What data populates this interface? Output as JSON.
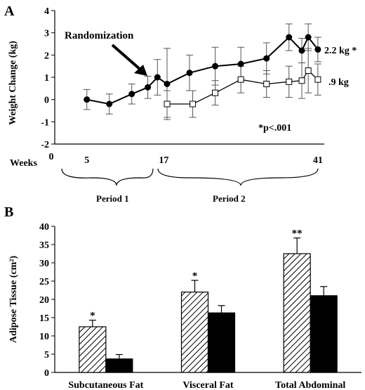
{
  "chart_data": [
    {
      "type": "line",
      "panel_label": "A",
      "ylabel": "Weight Change (kg)",
      "xlabel": "Weeks",
      "xlim": [
        0,
        42
      ],
      "ylim": [
        -2,
        4
      ],
      "yticks": [
        -2,
        -1,
        0,
        1,
        2,
        3,
        4
      ],
      "x_zero_label": "0",
      "x_tick_labels": [
        {
          "x": 5,
          "label": "5"
        },
        {
          "x": 17,
          "label": "17"
        },
        {
          "x": 41,
          "label": "41"
        }
      ],
      "series": [
        {
          "marker": "filled-circle",
          "points": [
            {
              "x": 5,
              "y": 0.0,
              "err": 0.45
            },
            {
              "x": 8.5,
              "y": -0.2,
              "err": 0.45
            },
            {
              "x": 12,
              "y": 0.25,
              "err": 0.45
            },
            {
              "x": 14.5,
              "y": 0.55,
              "err": 0.5
            },
            {
              "x": 16,
              "y": 1.0,
              "err": 0.8
            },
            {
              "x": 17.5,
              "y": 0.7,
              "err": 1.6
            },
            {
              "x": 21,
              "y": 1.2,
              "err": 0.8
            },
            {
              "x": 25,
              "y": 1.5,
              "err": 0.85
            },
            {
              "x": 29,
              "y": 1.6,
              "err": 0.75
            },
            {
              "x": 33,
              "y": 1.85,
              "err": 0.7
            },
            {
              "x": 36.5,
              "y": 2.8,
              "err": 0.6
            },
            {
              "x": 38.5,
              "y": 2.2,
              "err": 0.55
            },
            {
              "x": 39.5,
              "y": 2.8,
              "err": 0.6
            },
            {
              "x": 41,
              "y": 2.25,
              "err": 0.55
            }
          ]
        },
        {
          "marker": "open-square",
          "points": [
            {
              "x": 17.5,
              "y": -0.2,
              "err": 0.6
            },
            {
              "x": 21.5,
              "y": -0.2,
              "err": 0.6
            },
            {
              "x": 25,
              "y": 0.3,
              "err": 0.55
            },
            {
              "x": 29,
              "y": 0.9,
              "err": 0.6
            },
            {
              "x": 33,
              "y": 0.7,
              "err": 0.6
            },
            {
              "x": 36.5,
              "y": 0.8,
              "err": 0.7
            },
            {
              "x": 38.5,
              "y": 0.85,
              "err": 0.8
            },
            {
              "x": 39.5,
              "y": 1.3,
              "err": 1.0
            },
            {
              "x": 41,
              "y": 0.9,
              "err": 0.7
            }
          ]
        }
      ],
      "annotations": {
        "randomization": "Randomization",
        "pvalue": "*p<.001",
        "end_label_1": "2.2 kg *",
        "end_label_2": ".9 kg",
        "period1": "Period 1",
        "period2": "Period 2"
      }
    },
    {
      "type": "bar",
      "panel_label": "B",
      "ylabel": "Adipose Tissue (cm²)",
      "ylim": [
        0,
        40
      ],
      "yticks": [
        0,
        5,
        10,
        15,
        20,
        25,
        30,
        35,
        40
      ],
      "categories": [
        "Subcutaneous Fat",
        "Visceral Fat",
        "Total Abdominal"
      ],
      "series": [
        {
          "pattern": "hatched",
          "values": [
            12.5,
            22.0,
            32.5
          ],
          "errors": [
            1.8,
            3.2,
            4.3
          ],
          "sig": [
            "*",
            "*",
            "**"
          ]
        },
        {
          "pattern": "solid",
          "values": [
            3.7,
            16.3,
            21.0
          ],
          "errors": [
            1.2,
            2.0,
            2.5
          ],
          "sig": [
            "",
            "",
            ""
          ]
        }
      ]
    }
  ]
}
